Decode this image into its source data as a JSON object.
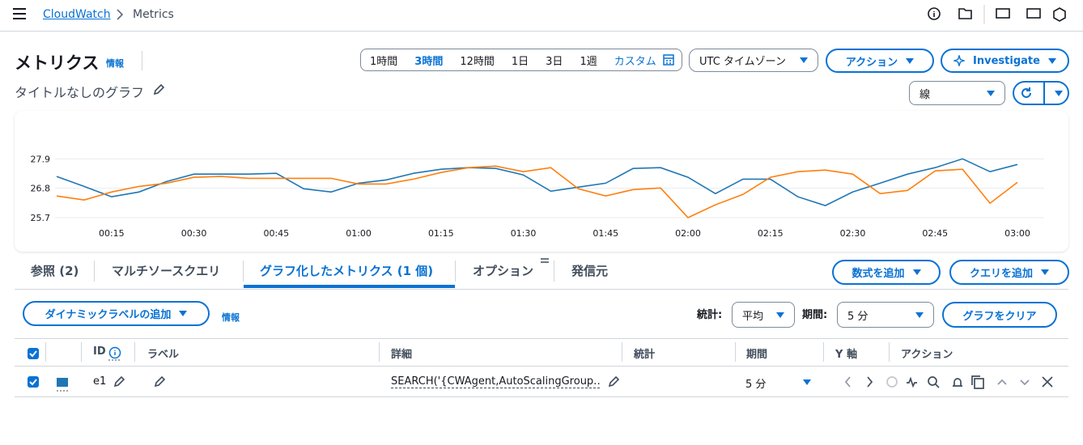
{
  "breadcrumb": [
    "CloudWatch",
    "Metrics"
  ],
  "header": {
    "title": "メトリクス",
    "info": "情報",
    "graph_title": "タイトルなしのグラフ"
  },
  "time_ranges": [
    "1時間",
    "3時間",
    "12時間",
    "1日",
    "3日",
    "1週",
    "カスタム"
  ],
  "toolbar": {
    "timezone": "UTC タイムゾーン",
    "actions": "アクション",
    "investigate": "Investigate",
    "chart_style": "線"
  },
  "chart_data": {
    "type": "line",
    "categories": [
      null,
      null,
      "00:15",
      null,
      null,
      "00:30",
      null,
      null,
      "00:45",
      null,
      null,
      "01:00",
      null,
      null,
      "01:15",
      null,
      null,
      "01:30",
      null,
      null,
      "01:45",
      null,
      null,
      "02:00",
      null,
      null,
      "02:15",
      null,
      null,
      "02:30",
      null,
      null,
      "02:45",
      null,
      null,
      "03:00"
    ],
    "series": [
      {
        "color": "#1f77b4",
        "values": [
          27.24,
          26.87,
          26.48,
          26.66,
          27.05,
          27.33,
          27.33,
          27.33,
          27.36,
          26.78,
          26.66,
          26.99,
          27.11,
          27.36,
          27.51,
          27.57,
          27.54,
          27.3,
          26.69,
          26.84,
          26.99,
          27.54,
          27.57,
          27.21,
          26.6,
          27.14,
          27.14,
          26.48,
          26.15,
          26.66,
          26.99,
          27.33,
          27.57,
          27.9,
          27.42,
          27.69
        ]
      },
      {
        "color": "#ff7f0e",
        "values": [
          26.51,
          26.36,
          26.66,
          26.87,
          26.99,
          27.21,
          27.24,
          27.17,
          27.17,
          27.17,
          27.17,
          26.96,
          26.96,
          27.14,
          27.39,
          27.57,
          27.63,
          27.42,
          27.57,
          26.78,
          26.51,
          26.75,
          26.81,
          25.7,
          26.18,
          26.57,
          27.21,
          27.42,
          27.48,
          27.33,
          26.6,
          26.72,
          27.45,
          27.51,
          26.24,
          27.02
        ]
      }
    ],
    "ylim": [
      25.7,
      29
    ],
    "yticks": [
      25.7,
      26.8,
      27.9
    ],
    "grid": true
  },
  "tabs": [
    "参照 (2)",
    "マルチソースクエリ",
    "グラフ化したメトリクス (1 個)",
    "オプション",
    "発信元"
  ],
  "controls": {
    "add_math": "数式を追加",
    "add_query": "クエリを追加",
    "dynamic_label": "ダイナミックラベルの追加",
    "info": "情報",
    "stat_label": "統計:",
    "stat": "平均",
    "period_label": "期間:",
    "period": "5 分",
    "clear": "グラフをクリア"
  },
  "table": {
    "columns": [
      "ID",
      "ラベル",
      "詳細",
      "統計",
      "期間",
      "Y 軸",
      "アクション"
    ],
    "rows": [
      {
        "id": "e1",
        "detail": "SEARCH('{CWAgent,AutoScalingGroup…",
        "period": "5 分"
      }
    ]
  }
}
